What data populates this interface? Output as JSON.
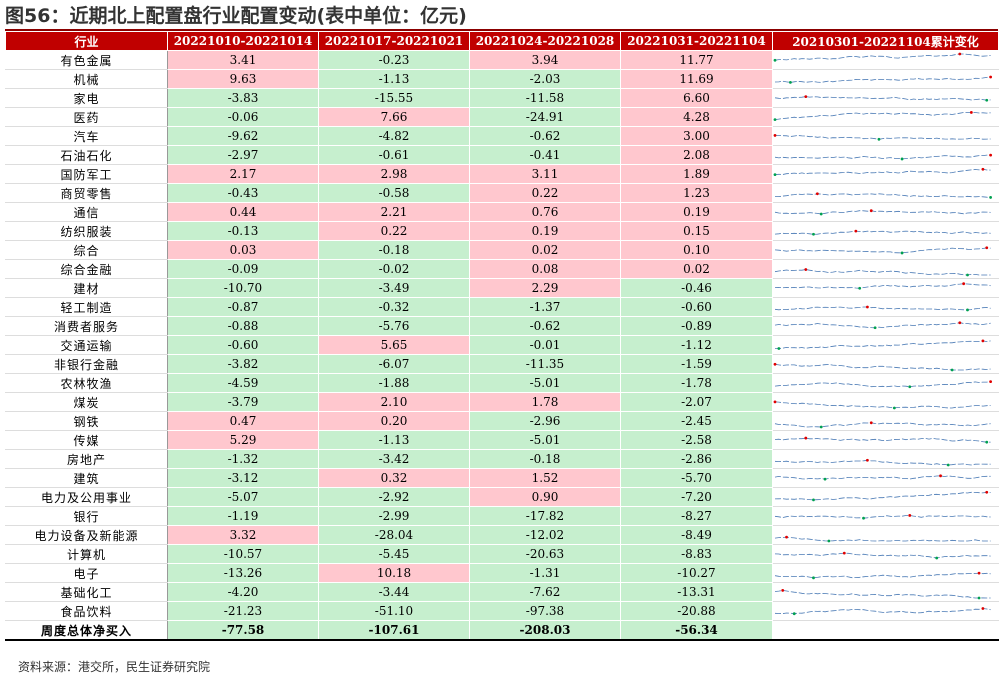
{
  "title": "图56：近期北上配置盘行业配置变动(表中单位：亿元)",
  "headers": [
    "行业",
    "20221010-20221014",
    "20221017-20221021",
    "20221024-20221028",
    "20221031-20221104",
    "20210301-20221104累计变化"
  ],
  "rows": [
    {
      "name": "有色金属",
      "v": [
        "3.41",
        "-0.23",
        "3.94",
        "11.77"
      ]
    },
    {
      "name": "机械",
      "v": [
        "9.63",
        "-1.13",
        "-2.03",
        "11.69"
      ]
    },
    {
      "name": "家电",
      "v": [
        "-3.83",
        "-15.55",
        "-11.58",
        "6.60"
      ]
    },
    {
      "name": "医药",
      "v": [
        "-0.06",
        "7.66",
        "-24.91",
        "4.28"
      ]
    },
    {
      "name": "汽车",
      "v": [
        "-9.62",
        "-4.82",
        "-0.62",
        "3.00"
      ]
    },
    {
      "name": "石油石化",
      "v": [
        "-2.97",
        "-0.61",
        "-0.41",
        "2.08"
      ]
    },
    {
      "name": "国防军工",
      "v": [
        "2.17",
        "2.98",
        "3.11",
        "1.89"
      ]
    },
    {
      "name": "商贸零售",
      "v": [
        "-0.43",
        "-0.58",
        "0.22",
        "1.23"
      ]
    },
    {
      "name": "通信",
      "v": [
        "0.44",
        "2.21",
        "0.76",
        "0.19"
      ]
    },
    {
      "name": "纺织服装",
      "v": [
        "-0.13",
        "0.22",
        "0.19",
        "0.15"
      ]
    },
    {
      "name": "综合",
      "v": [
        "0.03",
        "-0.18",
        "0.02",
        "0.10"
      ]
    },
    {
      "name": "综合金融",
      "v": [
        "-0.09",
        "-0.02",
        "0.08",
        "0.02"
      ]
    },
    {
      "name": "建材",
      "v": [
        "-10.70",
        "-3.49",
        "2.29",
        "-0.46"
      ]
    },
    {
      "name": "轻工制造",
      "v": [
        "-0.87",
        "-0.32",
        "-1.37",
        "-0.60"
      ]
    },
    {
      "name": "消费者服务",
      "v": [
        "-0.88",
        "-5.76",
        "-0.62",
        "-0.89"
      ]
    },
    {
      "name": "交通运输",
      "v": [
        "-0.60",
        "5.65",
        "-0.01",
        "-1.12"
      ]
    },
    {
      "name": "非银行金融",
      "v": [
        "-3.82",
        "-6.07",
        "-11.35",
        "-1.59"
      ]
    },
    {
      "name": "农林牧渔",
      "v": [
        "-4.59",
        "-1.88",
        "-5.01",
        "-1.78"
      ]
    },
    {
      "name": "煤炭",
      "v": [
        "-3.79",
        "2.10",
        "1.78",
        "-2.07"
      ]
    },
    {
      "name": "钢铁",
      "v": [
        "0.47",
        "0.20",
        "-2.96",
        "-2.45"
      ]
    },
    {
      "name": "传媒",
      "v": [
        "5.29",
        "-1.13",
        "-5.01",
        "-2.58"
      ]
    },
    {
      "name": "房地产",
      "v": [
        "-1.32",
        "-3.42",
        "-0.18",
        "-2.86"
      ]
    },
    {
      "name": "建筑",
      "v": [
        "-3.12",
        "0.32",
        "1.52",
        "-5.70"
      ]
    },
    {
      "name": "电力及公用事业",
      "v": [
        "-5.07",
        "-2.92",
        "0.90",
        "-7.20"
      ]
    },
    {
      "name": "银行",
      "v": [
        "-1.19",
        "-2.99",
        "-17.82",
        "-8.27"
      ]
    },
    {
      "name": "电力设备及新能源",
      "v": [
        "3.32",
        "-28.04",
        "-12.02",
        "-8.49"
      ]
    },
    {
      "name": "计算机",
      "v": [
        "-10.57",
        "-5.45",
        "-20.63",
        "-8.83"
      ]
    },
    {
      "name": "电子",
      "v": [
        "-13.26",
        "10.18",
        "-1.31",
        "-10.27"
      ]
    },
    {
      "name": "基础化工",
      "v": [
        "-4.20",
        "-3.44",
        "-7.62",
        "-13.31"
      ]
    },
    {
      "name": "食品饮料",
      "v": [
        "-21.23",
        "-51.10",
        "-97.38",
        "-20.88"
      ]
    }
  ],
  "total": {
    "name": "周度总体净买入",
    "v": [
      "-77.58",
      "-107.61",
      "-208.03",
      "-56.34"
    ]
  },
  "source": "资料来源：港交所，民生证券研究院",
  "colors": {
    "header": "#c00000",
    "positive_fill": "#ffc7ce",
    "negative_fill": "#c6efce",
    "sparkline": "#4a7ab5",
    "max_marker": "#e00000",
    "min_marker": "#00a050"
  }
}
